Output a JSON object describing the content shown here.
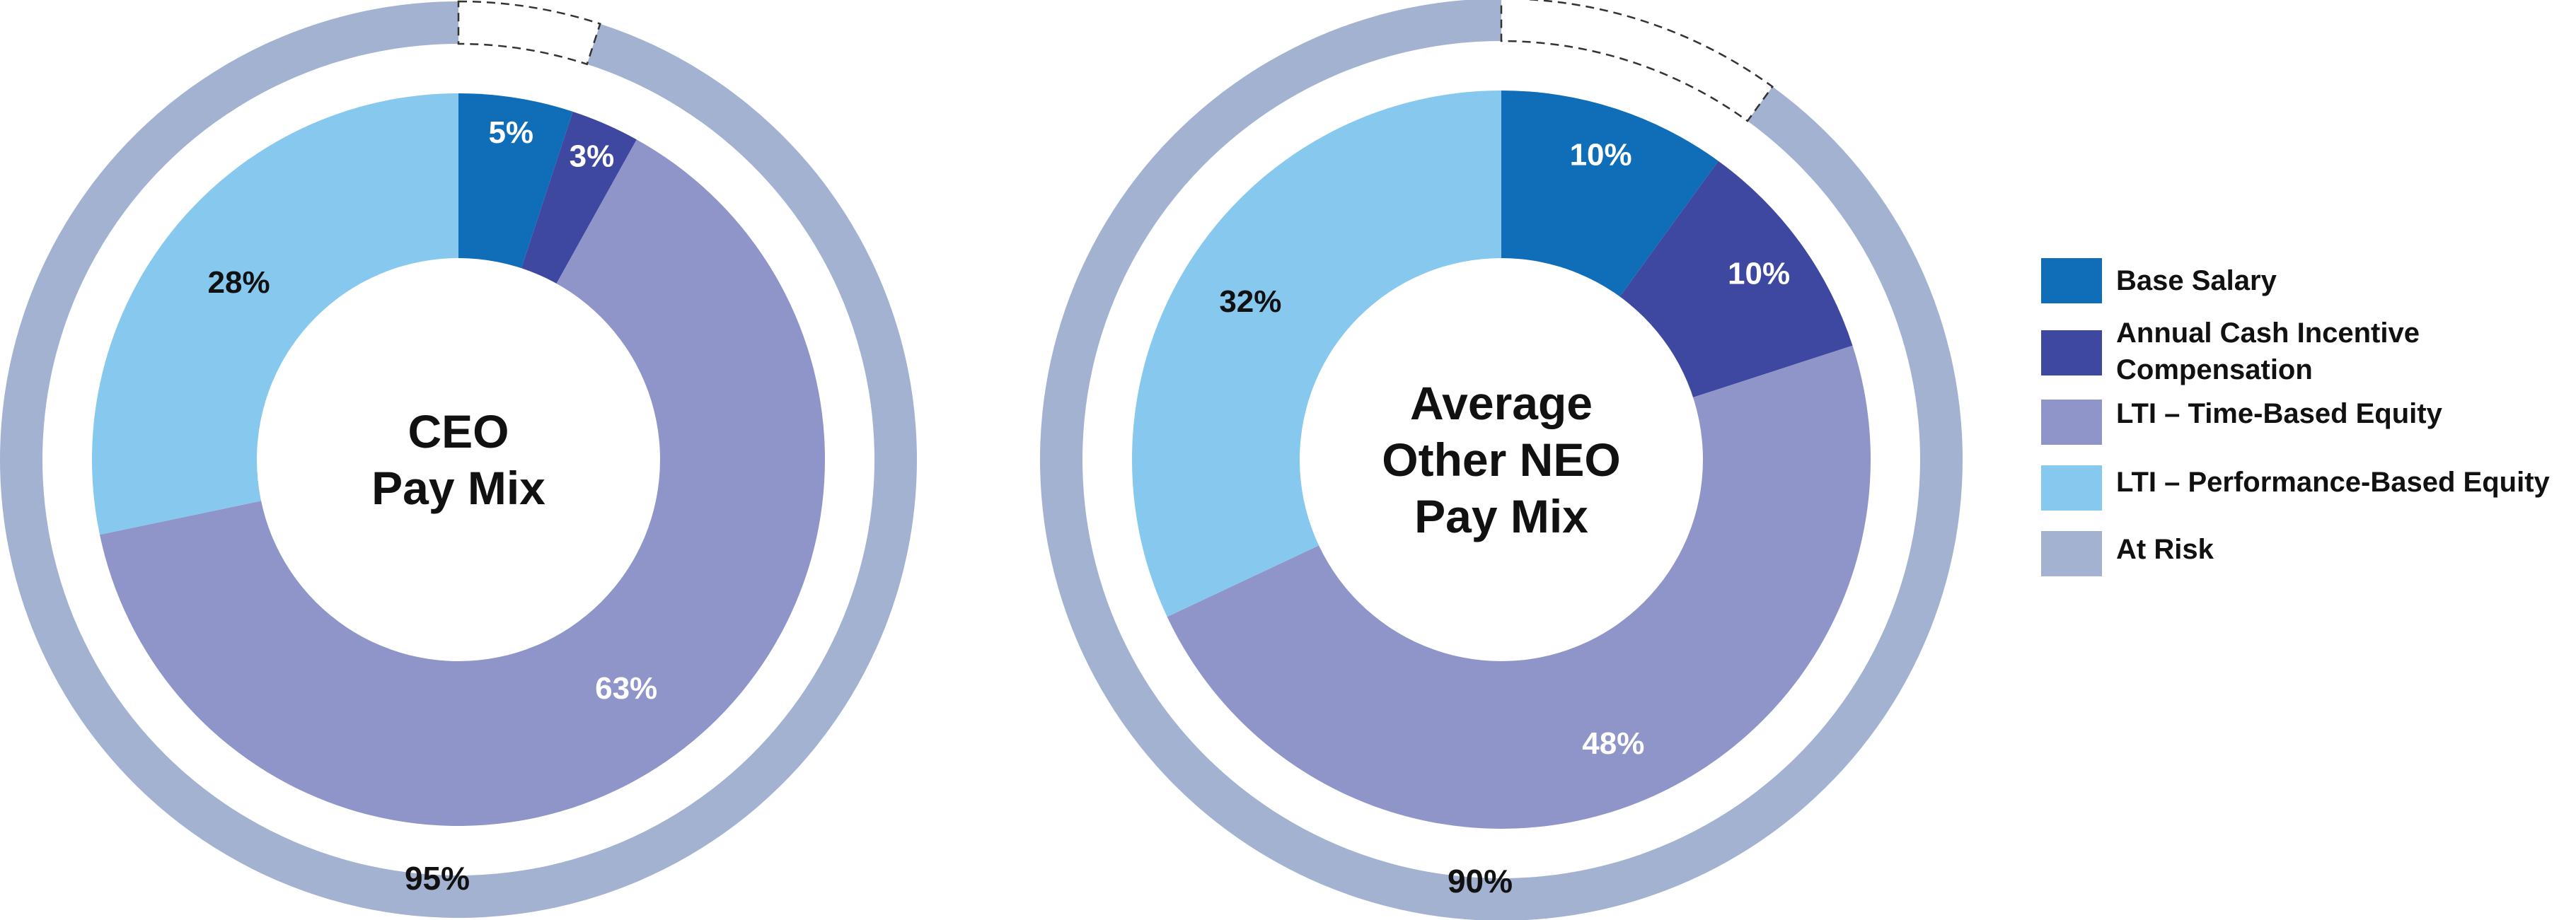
{
  "chart_data": [
    {
      "type": "pie",
      "title": "CEO\nPay Mix",
      "categories": [
        "Base Salary",
        "Annual Cash Incentive Compensation",
        "LTI – Time-Based Equity",
        "LTI – Performance-Based Equity"
      ],
      "values": [
        5,
        3,
        63,
        28
      ],
      "labels": [
        "5%",
        "3%",
        "63%",
        "28%"
      ],
      "at_risk": {
        "value": 95,
        "label": "95%"
      }
    },
    {
      "type": "pie",
      "title": "Average\nOther NEO\nPay Mix",
      "categories": [
        "Base Salary",
        "Annual Cash Incentive Compensation",
        "LTI – Time-Based Equity",
        "LTI – Performance-Based Equity"
      ],
      "values": [
        10,
        10,
        48,
        32
      ],
      "labels": [
        "10%",
        "10%",
        "48%",
        "32%"
      ],
      "at_risk": {
        "value": 90,
        "label": "90%"
      }
    }
  ],
  "legend": {
    "items": [
      {
        "label": "Base Salary",
        "color": "#106EB9"
      },
      {
        "label": "Annual Cash Incentive\nCompensation",
        "color": "#3F48A0"
      },
      {
        "label": "LTI – Time-Based Equity",
        "color": "#8F95C9"
      },
      {
        "label": "LTI – Performance-Based Equity",
        "color": "#87C8EF"
      },
      {
        "label": "At Risk",
        "color": "#A2B2D0"
      }
    ]
  },
  "colors": {
    "base_salary": "#106EB9",
    "annual_cash": "#3F48A0",
    "lti_time": "#8F95C9",
    "lti_perf": "#87C8EF",
    "at_risk": "#A2B2D0"
  }
}
